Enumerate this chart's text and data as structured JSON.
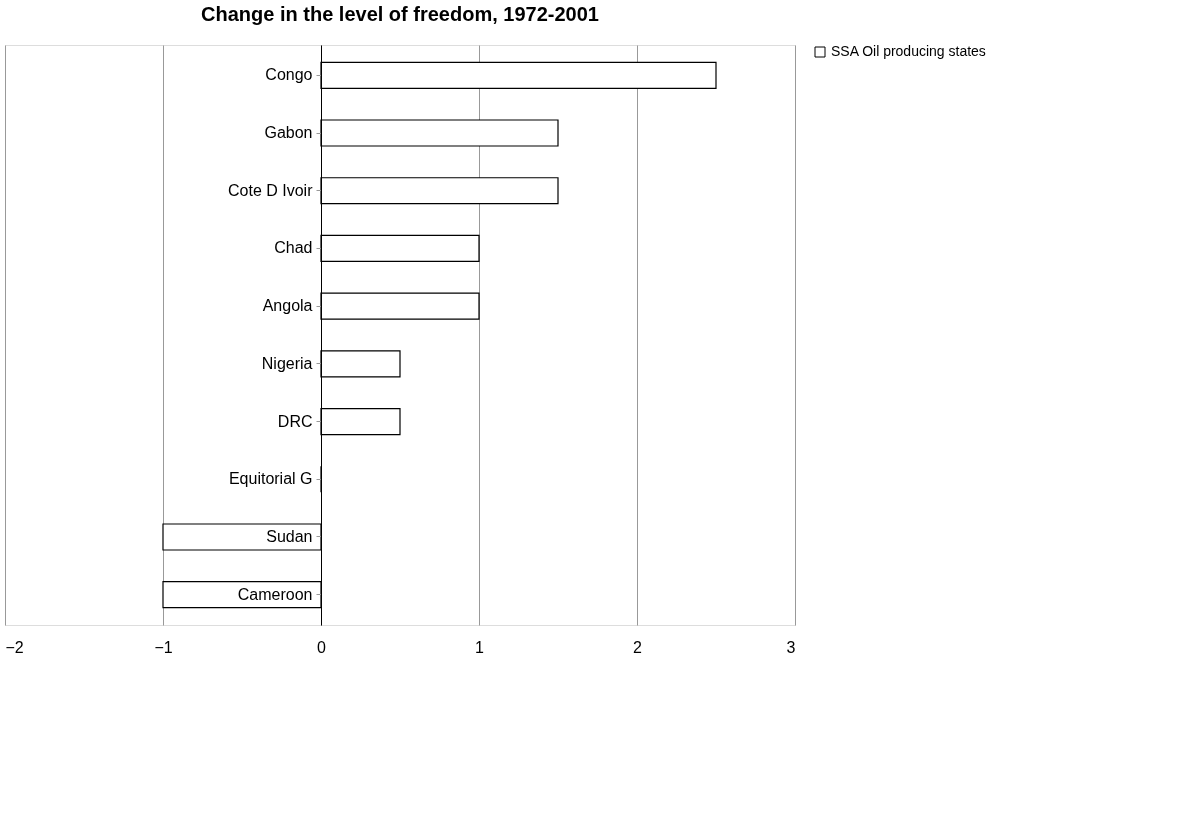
{
  "chart_data": {
    "type": "bar",
    "orientation": "horizontal",
    "title": "Change in the level of freedom, 1972-2001",
    "categories": [
      "Congo",
      "Gabon",
      "Cote D Ivoir",
      "Chad",
      "Angola",
      "Nigeria",
      "DRC",
      "Equitorial G",
      "Sudan",
      "Cameroon"
    ],
    "series": [
      {
        "name": "SSA Oil producing states",
        "color": "#ffffff",
        "values": [
          2.5,
          1.5,
          1.5,
          1,
          1,
          0.5,
          0.5,
          0,
          -1,
          -1
        ]
      }
    ],
    "xlim": [
      -2,
      3
    ],
    "xticks": [
      -2,
      -1,
      0,
      1,
      2,
      3
    ],
    "grid": "x",
    "legend": "right"
  }
}
